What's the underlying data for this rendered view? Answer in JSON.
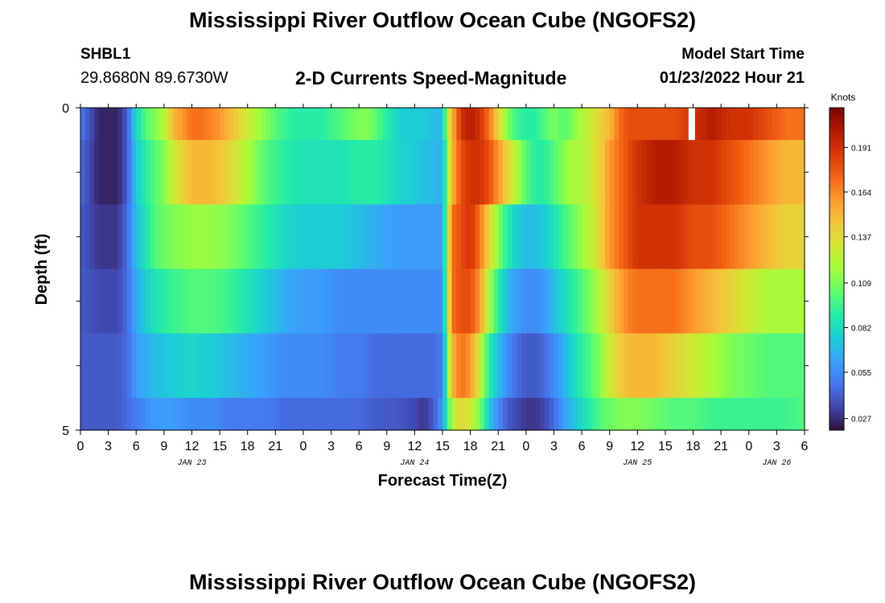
{
  "page": {
    "title": "Mississippi River Outflow Ocean Cube (NGOFS2)",
    "station_id": "SHBL1",
    "coordinates": "29.8680N  89.6730W",
    "chart_title": "2-D Currents Speed-Magnitude",
    "model_start_label": "Model Start Time",
    "model_start_value": "01/23/2022 Hour 21",
    "bottom_title": "Mississippi River Outflow Ocean Cube (NGOFS2)"
  },
  "chart_data": {
    "type": "heatmap",
    "title": "2-D Currents Speed-Magnitude",
    "xlabel": "Forecast Time(Z)",
    "ylabel": "Depth (ft)",
    "colorbar_label": "Knots",
    "x_range_hours": [
      0,
      78
    ],
    "y_range": [
      0,
      5
    ],
    "y_tick_labels": [
      "0",
      "5"
    ],
    "y_minor_ticks": [
      1,
      2,
      3,
      4
    ],
    "x_tick_hours": [
      0,
      3,
      6,
      9,
      12,
      15,
      18,
      21,
      24,
      27,
      30,
      33,
      36,
      39,
      42,
      45,
      48,
      51,
      54,
      57,
      60,
      63,
      66,
      69,
      72,
      75,
      78
    ],
    "x_tick_labels": [
      "0",
      "3",
      "6",
      "9",
      "12",
      "15",
      "18",
      "21",
      "0",
      "3",
      "6",
      "9",
      "12",
      "15",
      "18",
      "21",
      "0",
      "3",
      "6",
      "9",
      "12",
      "15",
      "18",
      "21",
      "0",
      "3",
      "6"
    ],
    "date_labels": [
      {
        "label": "JAN 23",
        "hour": 12
      },
      {
        "label": "JAN 24",
        "hour": 36
      },
      {
        "label": "JAN 25",
        "hour": 60
      },
      {
        "label": "JAN 26",
        "hour": 75
      }
    ],
    "colorbar_ticks": [
      0.027,
      0.055,
      0.082,
      0.109,
      0.137,
      0.164,
      0.191
    ],
    "colorbar_tick_labels": [
      "0.027",
      "0.055",
      "0.082",
      "0.109",
      "0.137",
      "0.164",
      "0.191"
    ],
    "value_range": [
      0.02,
      0.215
    ],
    "colors": [
      "#30123b",
      "#4145ab",
      "#4675ed",
      "#39a2fc",
      "#1bcfd4",
      "#24eca6",
      "#61fc6c",
      "#a4fc3b",
      "#d1e834",
      "#f3c63a",
      "#fe9b2d",
      "#f36315",
      "#d93806",
      "#b11901",
      "#7a0402"
    ],
    "missing_data": [
      {
        "hour_start": 65.5,
        "hour_end": 66.2,
        "depth_start": 0,
        "depth_end": 0.5
      }
    ],
    "layers": [
      {
        "depth_start": 0,
        "depth_end": 0.5,
        "hours": [
          0,
          2,
          4,
          5,
          6,
          7,
          9,
          10,
          11,
          12,
          13,
          15,
          17,
          19,
          21,
          23,
          24,
          26,
          28,
          30,
          31,
          32,
          33,
          34,
          35,
          36,
          37,
          38,
          39,
          39.5,
          40,
          41,
          42,
          43,
          44,
          45,
          46,
          47,
          48,
          49,
          50,
          51,
          52,
          53,
          54,
          55,
          56,
          57,
          58,
          59,
          60,
          62,
          64,
          66,
          68,
          70,
          72,
          74,
          76,
          78
        ],
        "values": [
          0.05,
          0.025,
          0.025,
          0.04,
          0.08,
          0.1,
          0.12,
          0.15,
          0.16,
          0.17,
          0.17,
          0.16,
          0.14,
          0.12,
          0.1,
          0.09,
          0.09,
          0.09,
          0.1,
          0.11,
          0.11,
          0.1,
          0.09,
          0.08,
          0.075,
          0.075,
          0.075,
          0.07,
          0.07,
          0.12,
          0.15,
          0.19,
          0.2,
          0.19,
          0.17,
          0.14,
          0.11,
          0.095,
          0.09,
          0.09,
          0.1,
          0.11,
          0.1,
          0.11,
          0.12,
          0.13,
          0.14,
          0.15,
          0.17,
          0.18,
          0.18,
          0.18,
          0.18,
          0.19,
          0.2,
          0.19,
          0.19,
          0.18,
          0.17,
          0.17
        ]
      },
      {
        "depth_start": 0.5,
        "depth_end": 1.5,
        "hours": [
          0,
          2,
          4,
          5,
          6,
          7,
          9,
          10,
          12,
          14,
          16,
          18,
          20,
          22,
          24,
          26,
          28,
          30,
          32,
          34,
          36,
          37,
          38,
          39,
          40,
          41,
          42,
          43,
          44,
          45,
          46,
          47,
          48,
          49,
          50,
          51,
          52,
          53,
          54,
          55,
          56,
          57,
          58,
          59,
          60,
          62,
          64,
          66,
          68,
          70,
          72,
          74,
          76,
          78
        ],
        "values": [
          0.045,
          0.025,
          0.025,
          0.04,
          0.075,
          0.09,
          0.11,
          0.13,
          0.15,
          0.15,
          0.14,
          0.12,
          0.1,
          0.09,
          0.085,
          0.085,
          0.085,
          0.09,
          0.09,
          0.08,
          0.075,
          0.07,
          0.07,
          0.065,
          0.15,
          0.18,
          0.19,
          0.19,
          0.18,
          0.16,
          0.14,
          0.12,
          0.1,
          0.09,
          0.09,
          0.1,
          0.11,
          0.12,
          0.12,
          0.13,
          0.14,
          0.16,
          0.17,
          0.18,
          0.19,
          0.2,
          0.2,
          0.19,
          0.19,
          0.18,
          0.17,
          0.16,
          0.15,
          0.15
        ]
      },
      {
        "depth_start": 1.5,
        "depth_end": 2.5,
        "hours": [
          0,
          2,
          4,
          5,
          6,
          7,
          8,
          10,
          12,
          14,
          16,
          18,
          20,
          22,
          24,
          26,
          28,
          30,
          32,
          34,
          36,
          37,
          38,
          39,
          40,
          41,
          42,
          43,
          44,
          45,
          46,
          47,
          48,
          49,
          50,
          51,
          52,
          53,
          54,
          55,
          56,
          57,
          58,
          59,
          60,
          62,
          64,
          66,
          68,
          70,
          72,
          74,
          76,
          78
        ],
        "values": [
          0.04,
          0.03,
          0.03,
          0.045,
          0.07,
          0.085,
          0.1,
          0.11,
          0.115,
          0.115,
          0.11,
          0.1,
          0.09,
          0.08,
          0.075,
          0.075,
          0.075,
          0.07,
          0.065,
          0.06,
          0.06,
          0.06,
          0.06,
          0.06,
          0.17,
          0.18,
          0.19,
          0.17,
          0.14,
          0.11,
          0.09,
          0.075,
          0.07,
          0.07,
          0.075,
          0.085,
          0.095,
          0.105,
          0.115,
          0.125,
          0.14,
          0.16,
          0.17,
          0.18,
          0.19,
          0.19,
          0.19,
          0.18,
          0.18,
          0.17,
          0.16,
          0.15,
          0.14,
          0.14
        ]
      },
      {
        "depth_start": 2.5,
        "depth_end": 3.5,
        "hours": [
          0,
          2,
          4,
          5,
          6,
          7,
          8,
          10,
          12,
          14,
          16,
          18,
          20,
          22,
          24,
          26,
          28,
          30,
          32,
          34,
          36,
          37,
          38,
          39,
          40,
          41,
          42,
          43,
          44,
          45,
          46,
          47,
          48,
          49,
          50,
          51,
          52,
          53,
          54,
          55,
          56,
          57,
          58,
          59,
          60,
          62,
          64,
          66,
          68,
          70,
          72,
          74,
          76,
          78
        ],
        "values": [
          0.04,
          0.035,
          0.035,
          0.045,
          0.065,
          0.075,
          0.085,
          0.095,
          0.1,
          0.1,
          0.095,
          0.085,
          0.075,
          0.065,
          0.06,
          0.06,
          0.055,
          0.055,
          0.055,
          0.055,
          0.055,
          0.055,
          0.055,
          0.055,
          0.17,
          0.18,
          0.18,
          0.16,
          0.12,
          0.09,
          0.07,
          0.06,
          0.055,
          0.055,
          0.06,
          0.07,
          0.08,
          0.09,
          0.1,
          0.11,
          0.125,
          0.14,
          0.155,
          0.165,
          0.17,
          0.17,
          0.17,
          0.16,
          0.15,
          0.14,
          0.13,
          0.12,
          0.12,
          0.12
        ]
      },
      {
        "depth_start": 3.5,
        "depth_end": 4.5,
        "hours": [
          0,
          2,
          4,
          5,
          6,
          7,
          8,
          10,
          12,
          14,
          16,
          18,
          20,
          22,
          24,
          26,
          28,
          30,
          32,
          34,
          36,
          37,
          38,
          39,
          40,
          41,
          42,
          43,
          44,
          45,
          46,
          47,
          48,
          49,
          50,
          51,
          52,
          53,
          54,
          55,
          56,
          57,
          58,
          59,
          60,
          62,
          64,
          66,
          68,
          70,
          72,
          74,
          76,
          78
        ],
        "values": [
          0.04,
          0.04,
          0.04,
          0.045,
          0.06,
          0.065,
          0.07,
          0.075,
          0.08,
          0.075,
          0.07,
          0.065,
          0.06,
          0.055,
          0.055,
          0.055,
          0.05,
          0.05,
          0.045,
          0.045,
          0.045,
          0.045,
          0.045,
          0.05,
          0.15,
          0.17,
          0.16,
          0.13,
          0.09,
          0.07,
          0.055,
          0.045,
          0.04,
          0.04,
          0.045,
          0.055,
          0.065,
          0.08,
          0.09,
          0.1,
          0.11,
          0.13,
          0.14,
          0.15,
          0.15,
          0.15,
          0.14,
          0.13,
          0.12,
          0.11,
          0.105,
          0.1,
          0.1,
          0.1
        ]
      },
      {
        "depth_start": 4.5,
        "depth_end": 5,
        "hours": [
          0,
          2,
          4,
          5,
          6,
          7,
          8,
          10,
          12,
          14,
          16,
          18,
          20,
          22,
          24,
          26,
          28,
          30,
          32,
          34,
          36,
          37,
          38,
          39,
          40,
          41,
          42,
          43,
          44,
          45,
          46,
          47,
          48,
          49,
          50,
          51,
          52,
          53,
          54,
          55,
          56,
          57,
          58,
          59,
          60,
          62,
          64,
          66,
          68,
          70,
          72,
          74,
          76,
          78
        ],
        "values": [
          0.04,
          0.04,
          0.04,
          0.045,
          0.05,
          0.055,
          0.06,
          0.06,
          0.055,
          0.055,
          0.05,
          0.05,
          0.05,
          0.045,
          0.045,
          0.045,
          0.045,
          0.045,
          0.04,
          0.04,
          0.035,
          0.03,
          0.04,
          0.06,
          0.12,
          0.14,
          0.13,
          0.11,
          0.075,
          0.055,
          0.04,
          0.035,
          0.03,
          0.03,
          0.035,
          0.045,
          0.06,
          0.07,
          0.08,
          0.09,
          0.1,
          0.105,
          0.11,
          0.11,
          0.11,
          0.105,
          0.1,
          0.1,
          0.095,
          0.095,
          0.095,
          0.095,
          0.095,
          0.1
        ]
      }
    ]
  }
}
